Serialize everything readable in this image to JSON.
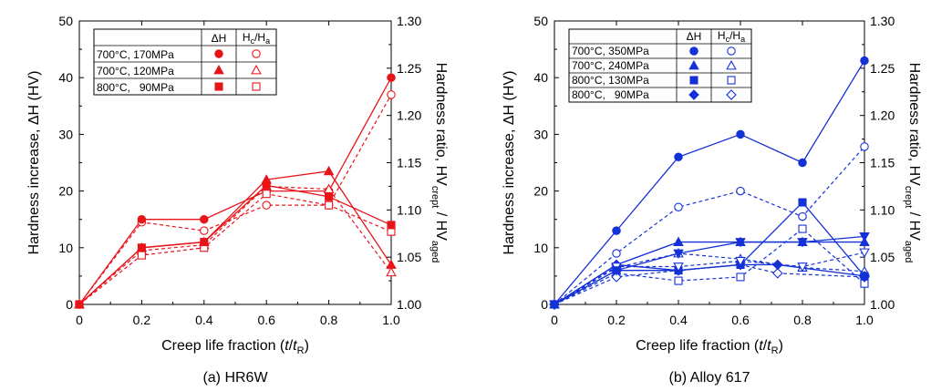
{
  "chart_data": [
    {
      "type": "line",
      "caption": "(a) HR6W",
      "xlabel_main": "Creep life fraction (",
      "xlabel_t": "t",
      "xlabel_slash": "/",
      "xlabel_tr": "t",
      "xlabel_sub": "R",
      "xlabel_close": ")",
      "ylabel_left": "Hardness increase, ΔH (HV)",
      "ylabel_right_main": "Hardness ratio, HV",
      "ylabel_right_sub1": "crept",
      "ylabel_right_sep": " / HV",
      "ylabel_right_sub2": "aged",
      "xlim": [
        0,
        1.0
      ],
      "ylim_left": [
        0,
        50
      ],
      "ylim_right": [
        1.0,
        1.3
      ],
      "x_ticks": [
        "0",
        "0.2",
        "0.4",
        "0.6",
        "0.8",
        "1.0"
      ],
      "y_left_ticks": [
        "0",
        "10",
        "20",
        "30",
        "40",
        "50"
      ],
      "y_right_ticks": [
        "1.00",
        "1.05",
        "1.10",
        "1.15",
        "1.20",
        "1.25",
        "1.30"
      ],
      "color": "#e8141a",
      "legend": {
        "header_dh": "ΔH",
        "header_ratio_main": "H",
        "header_ratio_sub1": "c",
        "header_ratio_slash": "/H",
        "header_ratio_sub2": "a",
        "rows": [
          "700°C, 170MPa",
          "700°C, 120MPa",
          "800°C,   90MPa"
        ]
      },
      "series": [
        {
          "name": "700°C, 170MPa",
          "marker": "circle",
          "x": [
            0,
            0.2,
            0.4,
            0.6,
            0.8,
            1.0
          ],
          "dh": [
            0,
            15,
            15,
            20,
            20,
            40
          ],
          "ratio": [
            1.0,
            1.087,
            1.078,
            1.105,
            1.105,
            1.222
          ]
        },
        {
          "name": "700°C, 120MPa",
          "marker": "triangle",
          "x": [
            0,
            0.2,
            0.4,
            0.6,
            0.8,
            1.0
          ],
          "dh": [
            0,
            10,
            11,
            22,
            23.5,
            7
          ],
          "ratio": [
            1.0,
            1.057,
            1.063,
            1.125,
            1.122,
            1.034
          ]
        },
        {
          "name": "800°C,   90MPa",
          "marker": "square",
          "x": [
            0,
            0.2,
            0.4,
            0.6,
            0.8,
            1.0
          ],
          "dh": [
            0,
            10,
            11,
            21,
            19,
            14
          ],
          "ratio": [
            1.0,
            1.052,
            1.06,
            1.117,
            1.105,
            1.077
          ]
        }
      ]
    },
    {
      "type": "line",
      "caption": "(b) Alloy 617",
      "xlabel_main": "Creep life fraction (",
      "xlabel_t": "t",
      "xlabel_slash": "/",
      "xlabel_tr": "t",
      "xlabel_sub": "R",
      "xlabel_close": ")",
      "ylabel_left": "Hardness increase, ΔH (HV)",
      "ylabel_right_main": "Hardness ratio, HV",
      "ylabel_right_sub1": "crept",
      "ylabel_right_sep": " / HV",
      "ylabel_right_sub2": "aged",
      "xlim": [
        0,
        1.0
      ],
      "ylim_left": [
        0,
        50
      ],
      "ylim_right": [
        1.0,
        1.3
      ],
      "x_ticks": [
        "0",
        "0.2",
        "0.4",
        "0.6",
        "0.8",
        "1.0"
      ],
      "y_left_ticks": [
        "0",
        "10",
        "20",
        "30",
        "40",
        "50"
      ],
      "y_right_ticks": [
        "1.00",
        "1.05",
        "1.10",
        "1.15",
        "1.20",
        "1.25",
        "1.30"
      ],
      "color": "#1431d6",
      "legend": {
        "header_dh": "ΔH",
        "header_ratio_main": "H",
        "header_ratio_sub1": "c",
        "header_ratio_slash": "/H",
        "header_ratio_sub2": "a",
        "rows": [
          "700°C, 350MPa",
          "700°C, 240MPa",
          "800°C, 130MPa",
          "800°C,   90MPa"
        ]
      },
      "series": [
        {
          "name": "700°C, 350MPa",
          "marker": "circle",
          "x": [
            0,
            0.2,
            0.4,
            0.6,
            0.8,
            1.0
          ],
          "dh": [
            0,
            13,
            26,
            30,
            25,
            43
          ],
          "ratio": [
            1.0,
            1.054,
            1.103,
            1.12,
            1.093,
            1.167
          ]
        },
        {
          "name": "700°C, 240MPa",
          "marker": "triangle",
          "x": [
            0,
            0.2,
            0.4,
            0.6,
            0.8,
            1.0
          ],
          "dh": [
            0,
            7,
            11,
            11,
            11,
            11
          ],
          "ratio": [
            1.0,
            1.039,
            1.054,
            1.048,
            1.039,
            1.035
          ]
        },
        {
          "name": "800°C, 130MPa",
          "marker": "square",
          "x": [
            0,
            0.2,
            0.4,
            0.6,
            0.8,
            1.0
          ],
          "dh": [
            0,
            6,
            6,
            7,
            18,
            5
          ],
          "ratio": [
            1.0,
            1.033,
            1.025,
            1.029,
            1.08,
            1.022
          ]
        },
        {
          "name": "800°C,   90MPa",
          "marker": "diamond",
          "x": [
            0,
            0.2,
            0.4,
            0.6,
            0.72,
            1.0
          ],
          "dh": [
            0,
            7,
            6,
            7,
            7,
            5
          ],
          "ratio": [
            1.0,
            1.029,
            1.036,
            1.042,
            1.033,
            1.029
          ]
        },
        {
          "name": "",
          "marker": "downtriangle",
          "x": [
            0,
            0.2,
            0.4,
            0.6,
            0.8,
            1.0
          ],
          "dh": [
            0,
            6,
            9,
            11,
            11,
            12
          ],
          "ratio": [
            1.0,
            1.04,
            1.04,
            1.046,
            1.04,
            1.055
          ]
        }
      ]
    }
  ]
}
